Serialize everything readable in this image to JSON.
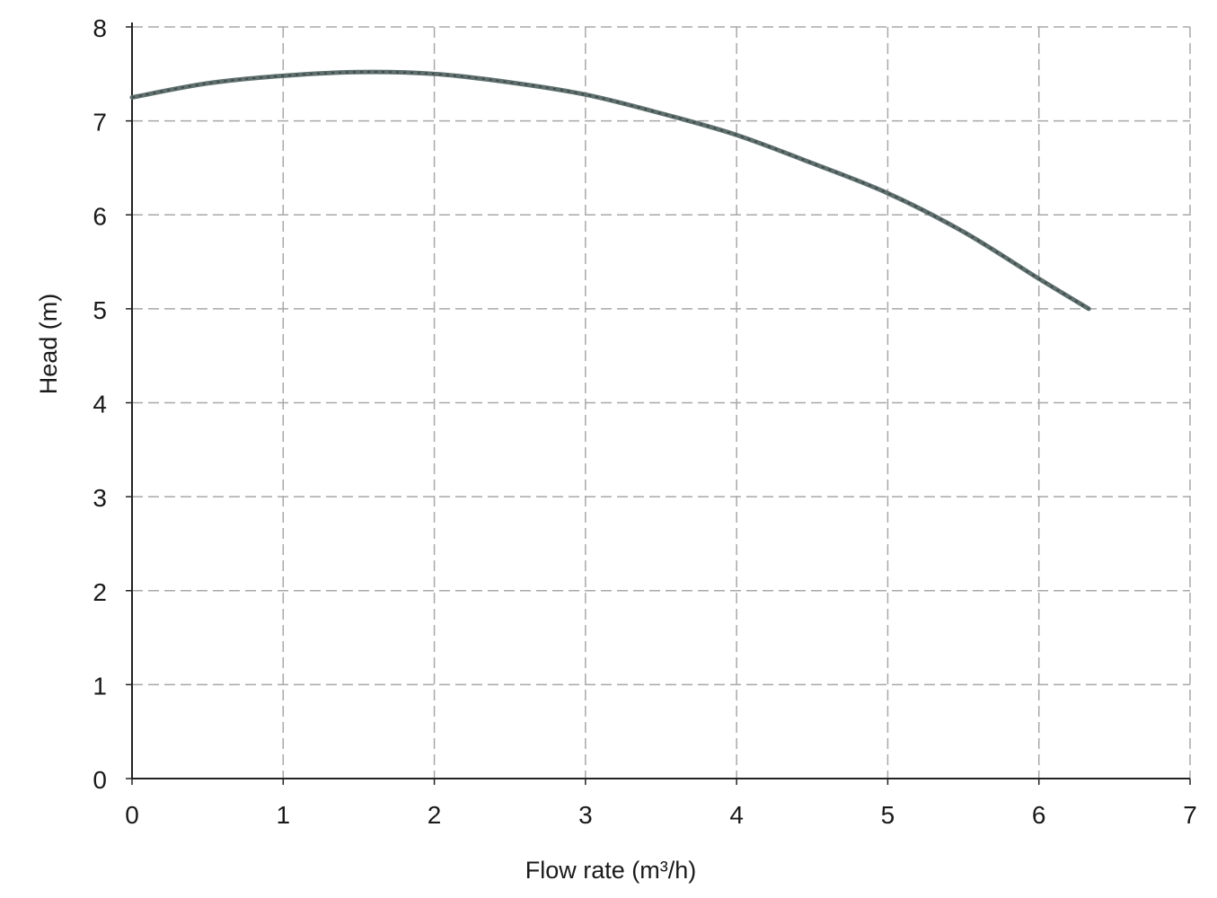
{
  "chart_data": {
    "type": "line",
    "title": "",
    "xlabel": "Flow rate (m³/h)",
    "ylabel": "Head (m)",
    "xlim": [
      0,
      7
    ],
    "ylim": [
      0,
      8
    ],
    "xticks": [
      "0",
      "1",
      "2",
      "3",
      "4",
      "5",
      "6",
      "7"
    ],
    "yticks": [
      "0",
      "1",
      "2",
      "3",
      "4",
      "5",
      "6",
      "7",
      "8"
    ],
    "grid": true,
    "grid_style": "dashed",
    "legend": "none",
    "series": [
      {
        "color": "#5f706e",
        "x": [
          0,
          0.5,
          1,
          1.5,
          2,
          2.5,
          3,
          3.5,
          4,
          4.5,
          5,
          5.5,
          6,
          6.33
        ],
        "y": [
          7.25,
          7.4,
          7.48,
          7.52,
          7.5,
          7.41,
          7.28,
          7.08,
          6.85,
          6.55,
          6.23,
          5.82,
          5.32,
          5.0
        ]
      }
    ]
  }
}
